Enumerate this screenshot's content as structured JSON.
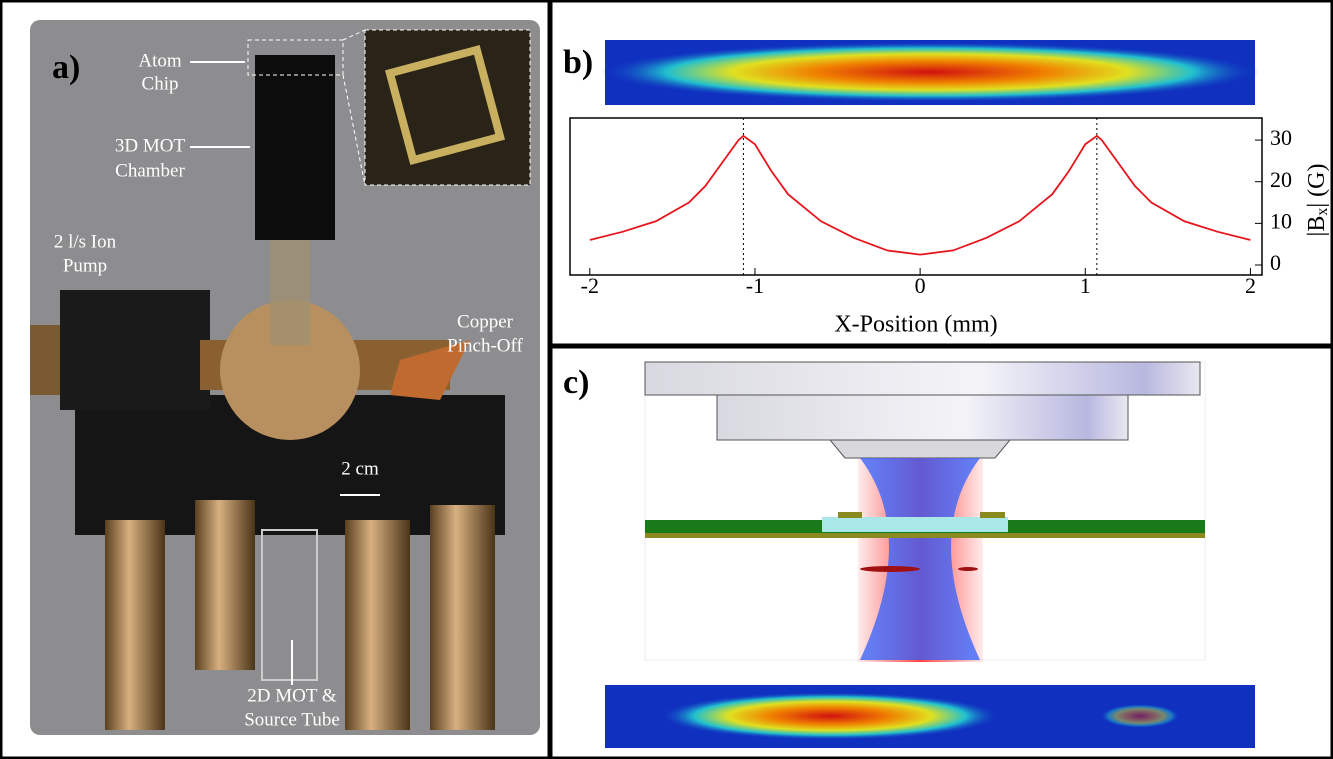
{
  "panels": {
    "a": {
      "label": "a)",
      "atom_chip": [
        "Atom",
        "Chip"
      ],
      "mot_chamber": [
        "3D MOT",
        "Chamber"
      ],
      "ion_pump": [
        "2 l/s Ion",
        "Pump"
      ],
      "pinch_off": [
        "Copper",
        "Pinch-Off"
      ],
      "scale": "2 cm",
      "source": [
        "2D MOT &",
        "Source Tube"
      ]
    },
    "b": {
      "label": "b)"
    },
    "c": {
      "label": "c)"
    }
  },
  "chart_data": {
    "type": "line",
    "xlabel": "X-Position (mm)",
    "ylabel": [
      "|B",
      "x",
      "| (G)"
    ],
    "x": [
      -2,
      -1.8,
      -1.6,
      -1.4,
      -1.3,
      -1.2,
      -1.1,
      -1.07,
      -1.0,
      -0.9,
      -0.8,
      -0.6,
      -0.4,
      -0.2,
      0,
      0.2,
      0.4,
      0.6,
      0.8,
      0.9,
      1.0,
      1.07,
      1.1,
      1.2,
      1.3,
      1.4,
      1.6,
      1.8,
      2
    ],
    "series": [
      {
        "color": "#e8141c",
        "values": [
          6,
          8,
          10.5,
          15,
          19,
          24.5,
          30,
          31,
          29,
          22.5,
          17,
          10.5,
          6.5,
          3.5,
          2.5,
          3.5,
          6.5,
          10.5,
          17,
          22.5,
          29,
          31,
          30,
          24.5,
          19,
          15,
          10.5,
          8,
          6
        ]
      }
    ],
    "markers": [
      -1.07,
      1.07
    ],
    "xlim": [
      -2.12,
      2.07
    ],
    "ylim": [
      -2.4,
      35.3
    ],
    "xticks": [
      -2,
      -1,
      0,
      1,
      2
    ],
    "yticks": [
      0,
      10,
      20,
      30
    ]
  }
}
